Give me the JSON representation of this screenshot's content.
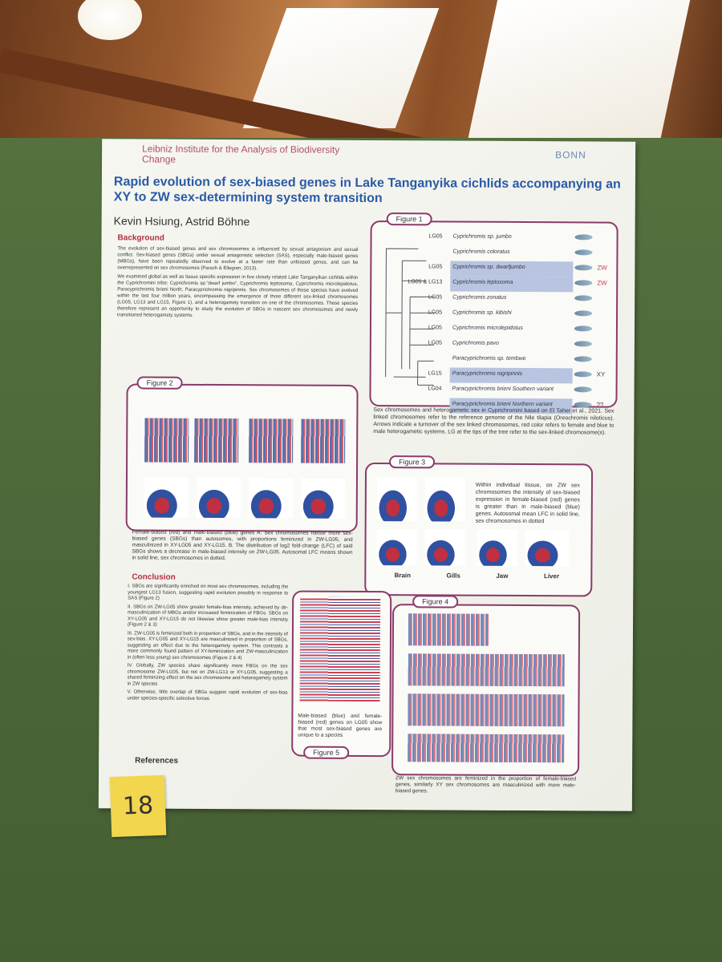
{
  "header": {
    "institute": "Leibniz Institute for the Analysis of Biodiversity Change",
    "partner": "BONN",
    "title": "Rapid evolution of sex-biased genes in Lake Tanganyika cichlids accompanying an XY to ZW sex-determining system transition",
    "authors": "Kevin Hsiung, Astrid Böhne"
  },
  "background": {
    "heading": "Background",
    "paragraphs": [
      "The evolution of sex-biased genes and sex chromosomes is influenced by sexual antagonism and sexual conflict. Sex-biased genes (SBGs) under sexual antagonistic selection (SAS), especially male-biased genes (MBGs), have been repeatedly observed to evolve at a faster rate than unbiased genes, and can be overrepresented on sex chromosomes (Parsch & Ellegren, 2013).",
      "We examined global as well as tissue specific expression in five closely related Lake Tanganyikan cichlids within the Cyprichromini tribe: Cyprichromis sp.\"dwarf jumbo\", Cyprichromis leptosoma, Cyprichromis microlepidotus, Paracyprichromis brieni North, Paracyprichromis nigripinnis. Sex chromosomes of these species have evolved within the last four million years, encompassing the emergence of three different sex-linked chromosomes (LG05, LG13 and LG15, Figure 1), and a heterogamety transition on one of the chromosomes. These species therefore represent an opportunity to study the evolution of SBGs in nascent sex chromosomes and newly transitioned heterogamety systems."
    ]
  },
  "figure1": {
    "label": "Figure 1",
    "species": [
      {
        "name": "Cyprichromis sp. jumbo",
        "lg": "LG05",
        "sex": null
      },
      {
        "name": "Cyprichromis coloratus",
        "lg": null,
        "sex": null
      },
      {
        "name": "Cyprichromis sp. dwarfjumbo",
        "lg": "LG05",
        "sex": "ZW"
      },
      {
        "name": "Cyprichromis leptosoma",
        "lg": "LG05 & LG13",
        "sex": "ZW"
      },
      {
        "name": "Cyprichromis zonatus",
        "lg": "LG05",
        "sex": null
      },
      {
        "name": "Cyprichromis sp. kibishi",
        "lg": "LG05",
        "sex": null
      },
      {
        "name": "Cyprichromis microlepidotus",
        "lg": "LG05",
        "sex": null
      },
      {
        "name": "Cyprichromis pavo",
        "lg": "LG05",
        "sex": null
      },
      {
        "name": "Paracyprichromis sp. tembwe",
        "lg": null,
        "sex": null
      },
      {
        "name": "Paracyprichromis nigripinnis",
        "lg": "LG15",
        "sex": "XY"
      },
      {
        "name": "Paracyprichromis brieni Southern variant",
        "lg": "LG04",
        "sex": null
      },
      {
        "name": "Paracyprichromis brieni Northern variant",
        "lg": null,
        "sex": "??"
      }
    ],
    "caption": "Sex chromosomes and heterogametic sex in Cyprichromini based on El Taher et al., 2021. Sex linked chromosomes refer to the reference genome of the Nile tilapia (Oreochromis niloticus). Arrows indicate a turnover of the sex linked chromosomes, red color refers to female and blue to male heterogametic systems. LG at the tips of the tree refer to the sex-linked chromosome(s)."
  },
  "figure2": {
    "label": "Figure 2",
    "caption": "Female-biased (red) and male-biased (blue) genes A. Sex chromosomes harbor more sex-biased genes (SBGs) than autosomes, with proportions feminized in ZW-LG05, and masculinized in XY-LG05 and XY-LG15. B. The distribution of log2 fold-change (LFC) of said SBGs shows a decrease in male-biased intensity on ZW-LG05. Autosomal LFC means shown in solid line, sex chromosomes in dotted."
  },
  "figure3": {
    "label": "Figure 3",
    "caption": "Within individual tissue, on ZW sex chromosomes the intensity of sex-biased expression in female-biased (red) genes is greater than in male-biased (blue) genes. Autosomal mean LFC in solid line, sex chromosomes in dotted",
    "tissues": [
      "Brain",
      "Gills",
      "Jaw",
      "Liver"
    ]
  },
  "conclusion": {
    "heading": "Conclusion",
    "items": [
      "I. SBGs are significantly enriched on most sex chromosomes, including the youngest LG13 fusion, suggesting rapid evolution possibly in response to SAS (Figure 2)",
      "II. SBGs on ZW-LG05 show greater female-bias intensity, achieved by de-masculinization of MBGs and/or increased feminization of FBGs. SBGs on XY-LG05 and XY-LG15 do not likewise show greater male-bias intensity (Figure 2 & 3)",
      "III. ZW-LG05 is feminized both in proportion of SBGs, and in the intensity of sex-bias. XY-LG05 and XY-LG15 are masculinized in proportion of SBGs, suggesting an effect due to the heterogamety system. This contrasts a more commonly found pattern of XY-feminization and ZW-masculinization in (often less young) sex chromosomes (Figure 2 & 4)",
      "IV. Globally, ZW species share significantly more FBGs on the sex chromosome ZW-LG05, but not on ZW-LG13 or XY-LG05, suggesting a shared feminizing effect on the sex chromosome and heterogamety system in ZW species",
      "V. Otherwise, little overlap of SBGs suggest rapid evolution of sex-bias under species-specific selective forces"
    ]
  },
  "references": {
    "heading": "References"
  },
  "figure4": {
    "label": "Figure 4",
    "caption": "ZW sex chromosomes are feminized in the proportion of female-biased genes, similarly XY sex chromosomes are masculinized with more male-biased genes."
  },
  "figure5": {
    "label": "Figure 5",
    "caption": "Male-biased (blue) and female-biased (red) genes on LG05 show that most sex-biased genes are unique to a species"
  },
  "board_number": "18"
}
